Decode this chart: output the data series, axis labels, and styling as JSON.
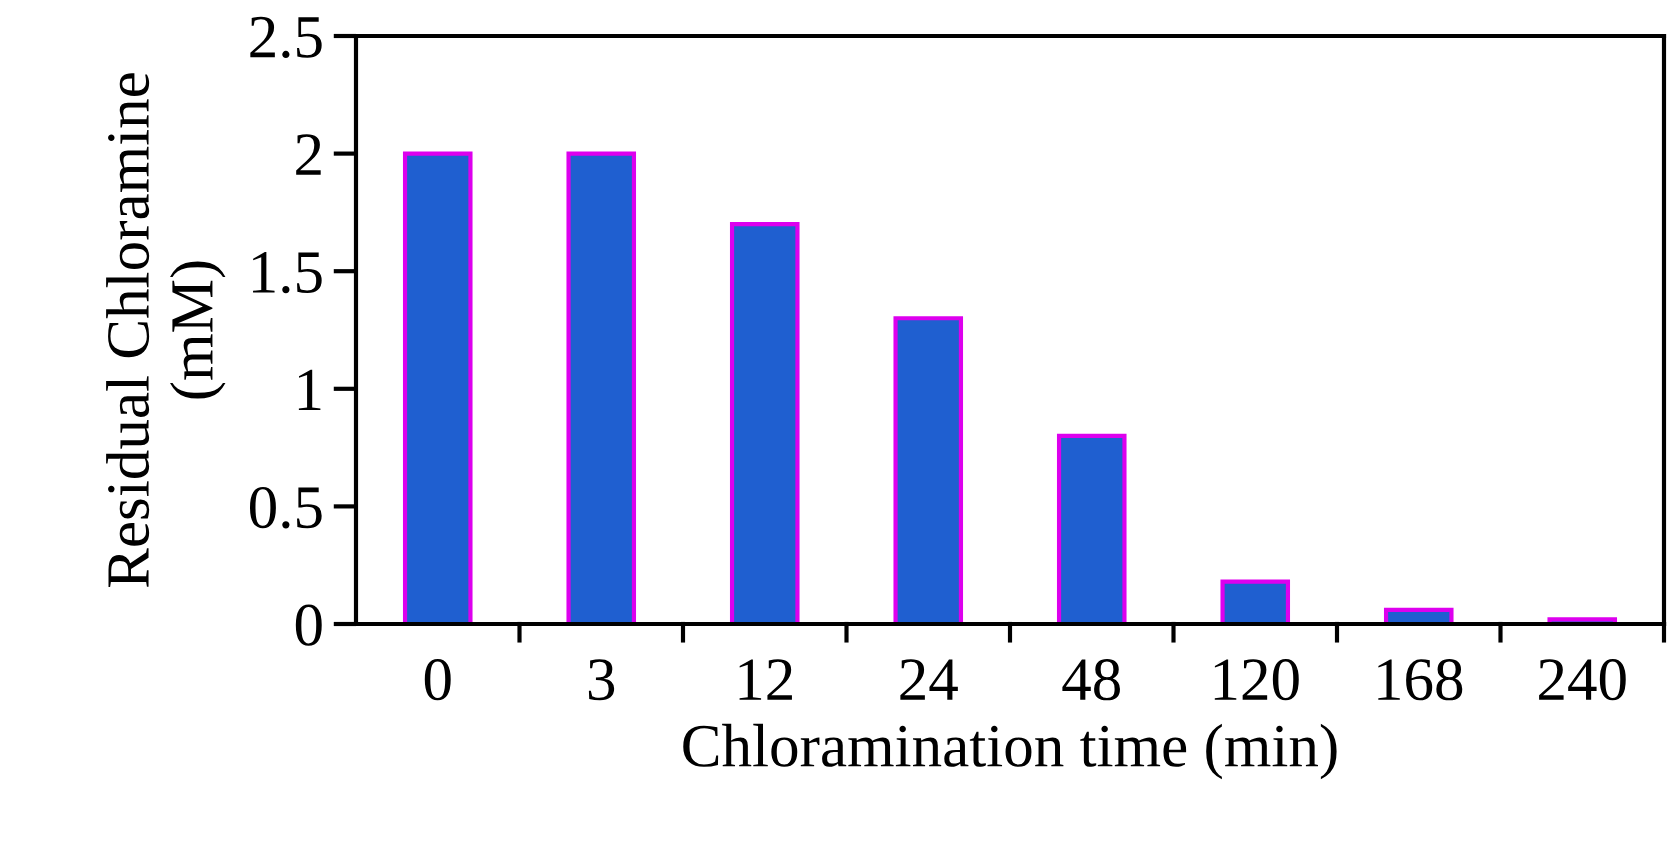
{
  "chart_data": {
    "type": "bar",
    "xlabel": "Chloramination time (min)",
    "ylabel": "Residual Chloramine\n(mM)",
    "categories": [
      "0",
      "3",
      "12",
      "24",
      "48",
      "120",
      "168",
      "240"
    ],
    "series": [
      {
        "color": "#1f5fd0",
        "values": [
          2.0,
          2.0,
          1.7,
          1.3,
          0.8,
          0.18,
          0.06,
          0.02
        ]
      }
    ],
    "ylim": [
      0,
      2.5
    ],
    "yticks": [
      0,
      0.5,
      1,
      1.5,
      2,
      2.5
    ],
    "grid": false,
    "legend": false
  }
}
